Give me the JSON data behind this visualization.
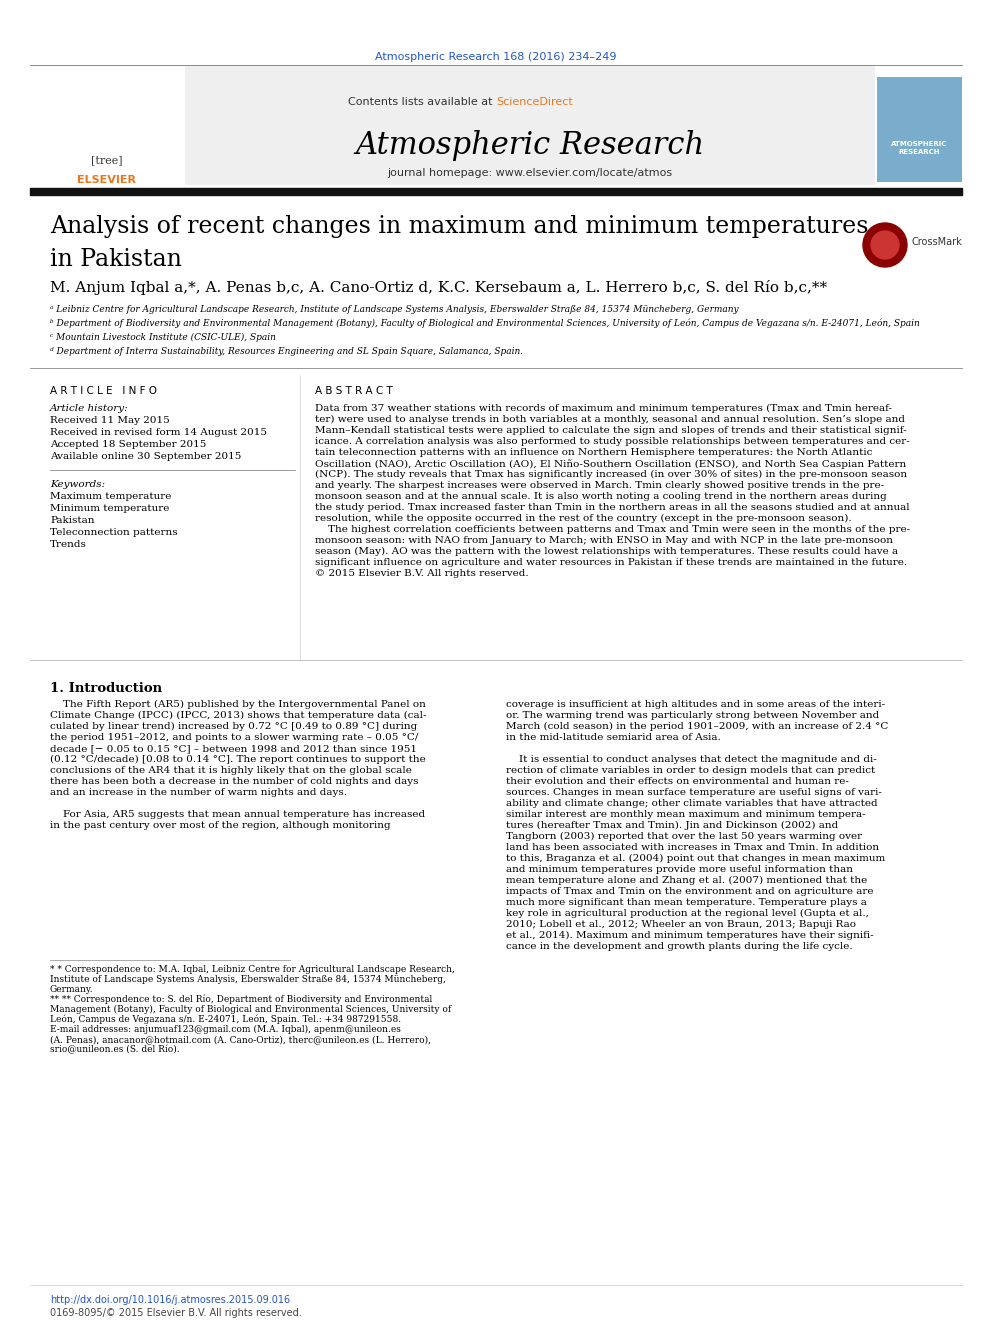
{
  "page_title": "Atmospheric Research 168 (2016) 234–249",
  "journal_name": "Atmospheric Research",
  "journal_contents_line": "Contents lists available at ScienceDirect",
  "journal_homepage": "journal homepage: www.elsevier.com/locate/atmos",
  "paper_title_line1": "Analysis of recent changes in maximum and minimum temperatures",
  "paper_title_line2": "in Pakistan",
  "authors": "M. Anjum Iqbal a,*, A. Penas b,c, A. Cano-Ortiz d, K.C. Kersebaum a, L. Herrero b,c, S. del Río b,c,**",
  "affil_a": "ᵃ Leibniz Centre for Agricultural Landscape Research, Institute of Landscape Systems Analysis, Eberswalder Straße 84, 15374 Müncheberg, Germany",
  "affil_b": "ᵇ Department of Biodiversity and Environmental Management (Botany), Faculty of Biological and Environmental Sciences, University of León, Campus de Vegazana s/n. E-24071, León, Spain",
  "affil_c": "ᶜ Mountain Livestock Institute (CSIC-ULE), Spain",
  "affil_d": "ᵈ Department of Interra Sustainability, Resources Engineering and SL Spain Square, Salamanca, Spain.",
  "section_article_info": "A R T I C L E   I N F O",
  "section_abstract": "A B S T R A C T",
  "article_history_label": "Article history:",
  "received1": "Received 11 May 2015",
  "received2": "Received in revised form 14 August 2015",
  "accepted": "Accepted 18 September 2015",
  "available": "Available online 30 September 2015",
  "keywords_label": "Keywords:",
  "keyword1": "Maximum temperature",
  "keyword2": "Minimum temperature",
  "keyword3": "Pakistan",
  "keyword4": "Teleconnection patterns",
  "keyword5": "Trends",
  "abstract_lines": [
    "Data from 37 weather stations with records of maximum and minimum temperatures (Tmax and Tmin hereaf-",
    "ter) were used to analyse trends in both variables at a monthly, seasonal and annual resolution. Sen’s slope and",
    "Mann–Kendall statistical tests were applied to calculate the sign and slopes of trends and their statistical signif-",
    "icance. A correlation analysis was also performed to study possible relationships between temperatures and cer-",
    "tain teleconnection patterns with an influence on Northern Hemisphere temperatures: the North Atlantic",
    "Oscillation (NAO), Arctic Oscillation (AO), El Niño-Southern Oscillation (ENSO), and North Sea Caspian Pattern",
    "(NCP). The study reveals that Tmax has significantly increased (in over 30% of sites) in the pre-monsoon season",
    "and yearly. The sharpest increases were observed in March. Tmin clearly showed positive trends in the pre-",
    "monsoon season and at the annual scale. It is also worth noting a cooling trend in the northern areas during",
    "the study period. Tmax increased faster than Tmin in the northern areas in all the seasons studied and at annual",
    "resolution, while the opposite occurred in the rest of the country (except in the pre-monsoon season).",
    "    The highest correlation coefficients between patterns and Tmax and Tmin were seen in the months of the pre-",
    "monsoon season: with NAO from January to March; with ENSO in May and with NCP in the late pre-monsoon",
    "season (May). AO was the pattern with the lowest relationships with temperatures. These results could have a",
    "significant influence on agriculture and water resources in Pakistan if these trends are maintained in the future.",
    "© 2015 Elsevier B.V. All rights reserved."
  ],
  "intro_heading": "1. Introduction",
  "intro_col1": [
    "    The Fifth Report (AR5) published by the Intergovernmental Panel on",
    "Climate Change (IPCC) (IPCC, 2013) shows that temperature data (cal-",
    "culated by linear trend) increased by 0.72 °C [0.49 to 0.89 °C] during",
    "the period 1951–2012, and points to a slower warming rate – 0.05 °C/",
    "decade [− 0.05 to 0.15 °C] – between 1998 and 2012 than since 1951",
    "(0.12 °C/decade) [0.08 to 0.14 °C]. The report continues to support the",
    "conclusions of the AR4 that it is highly likely that on the global scale",
    "there has been both a decrease in the number of cold nights and days",
    "and an increase in the number of warm nights and days.",
    "",
    "    For Asia, AR5 suggests that mean annual temperature has increased",
    "in the past century over most of the region, although monitoring"
  ],
  "intro_col2": [
    "coverage is insufficient at high altitudes and in some areas of the interi-",
    "or. The warming trend was particularly strong between November and",
    "March (cold season) in the period 1901–2009, with an increase of 2.4 °C",
    "in the mid-latitude semiarid area of Asia.",
    "",
    "    It is essential to conduct analyses that detect the magnitude and di-",
    "rection of climate variables in order to design models that can predict",
    "their evolution and their effects on environmental and human re-",
    "sources. Changes in mean surface temperature are useful signs of vari-",
    "ability and climate change; other climate variables that have attracted",
    "similar interest are monthly mean maximum and minimum tempera-",
    "tures (hereafter Tmax and Tmin). Jin and Dickinson (2002) and",
    "Tangborn (2003) reported that over the last 50 years warming over",
    "land has been associated with increases in Tmax and Tmin. In addition",
    "to this, Braganza et al. (2004) point out that changes in mean maximum",
    "and minimum temperatures provide more useful information than",
    "mean temperature alone and Zhang et al. (2007) mentioned that the",
    "impacts of Tmax and Tmin on the environment and on agriculture are",
    "much more significant than mean temperature. Temperature plays a",
    "key role in agricultural production at the regional level (Gupta et al.,",
    "2010; Lobell et al., 2012; Wheeler an von Braun, 2013; Bapuji Rao",
    "et al., 2014). Maximum and minimum temperatures have their signifi-",
    "cance in the development and growth plants during the life cycle."
  ],
  "footnote1": "* Correspondence to: M.A. Iqbal, Leibniz Centre for Agricultural Landscape Research,",
  "footnote1b": "Institute of Landscape Systems Analysis, Eberswalder Straße 84, 15374 Müncheberg,",
  "footnote1c": "Germany.",
  "footnote2": "** Correspondence to: S. del Río, Department of Biodiversity and Environmental",
  "footnote2b": "Management (Botany), Faculty of Biological and Environmental Sciences, University of",
  "footnote2c": "León, Campus de Vegazana s/n. E-24071, León, Spain. Tel.: +34 987291558.",
  "footnote_email": "E-mail addresses: anjumuaf123@gmail.com (M.A. Iqbal), apenm@unileon.es",
  "footnote_emailb": "(A. Penas), anacanor@hotmail.com (A. Cano-Ortiz), therc@unileon.es (L. Herrero),",
  "footnote_emailc": "srio@unileon.es (S. del Río).",
  "footer_doi": "http://dx.doi.org/10.1016/j.atmosres.2015.09.016",
  "footer_issn": "0169-8095/© 2015 Elsevier B.V. All rights reserved.",
  "bg_color": "#ffffff",
  "header_bg_color": "#efefef",
  "blue_color": "#2255cc",
  "sciencedirect_color": "#e87820",
  "link_color": "#2255cc",
  "title_color": "#000000",
  "text_color": "#000000",
  "gray_color": "#888888"
}
